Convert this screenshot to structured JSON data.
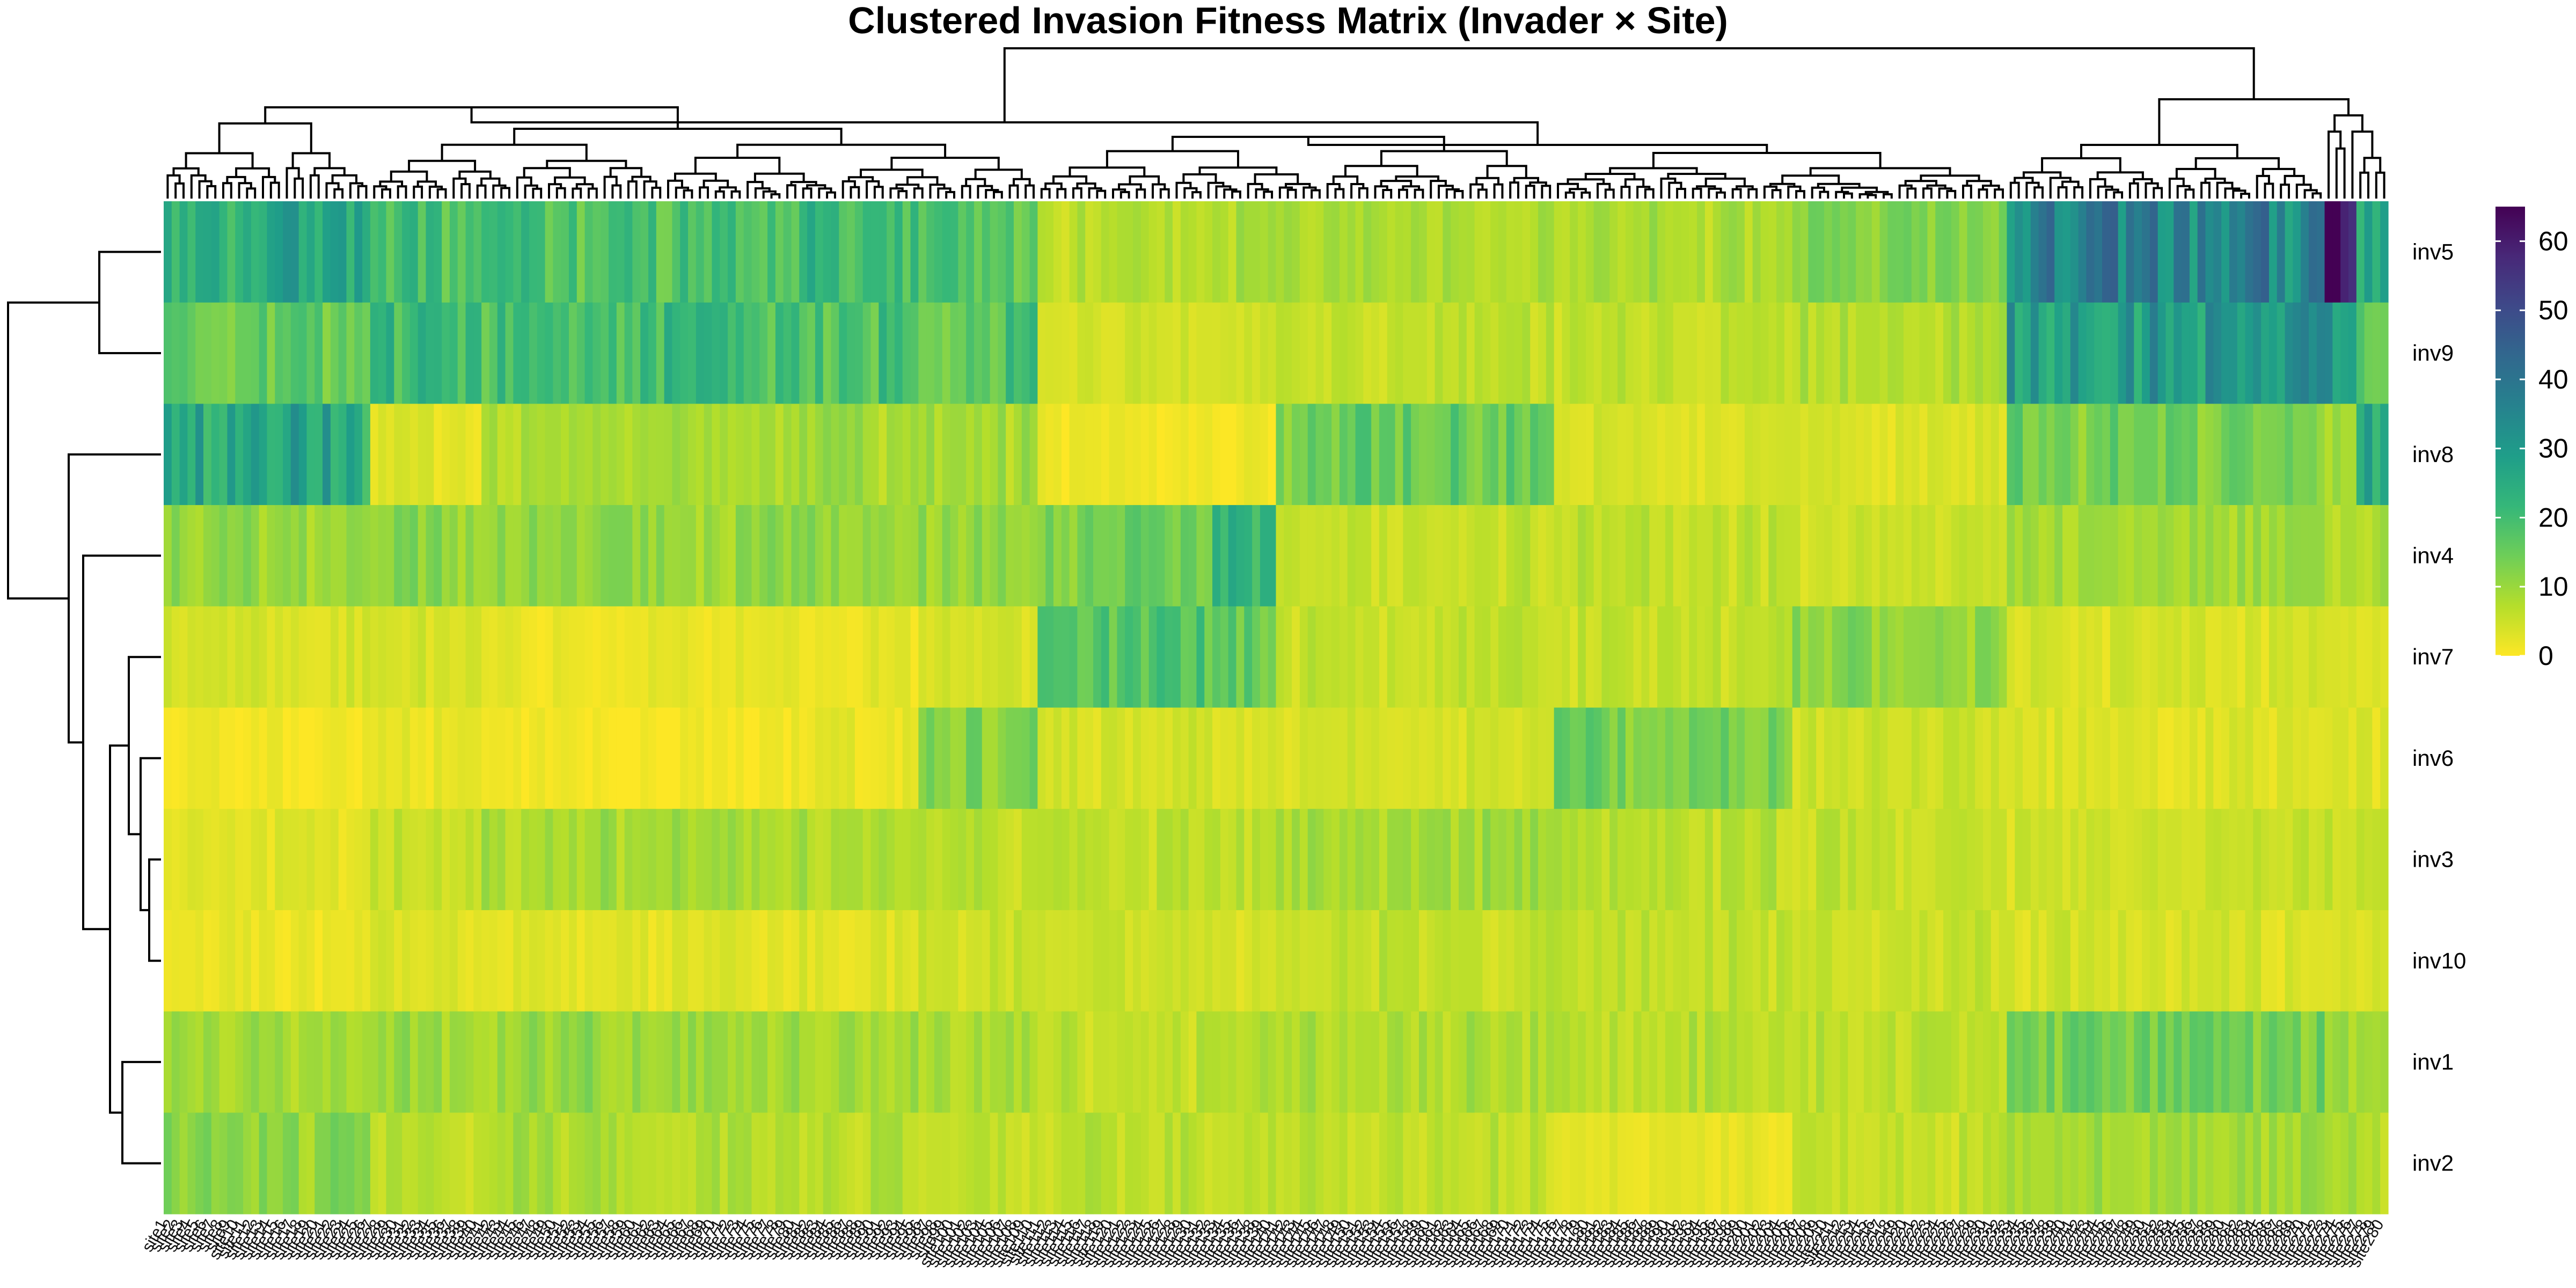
{
  "chart_data": {
    "type": "heatmap",
    "title": "Clustered Invasion Fitness Matrix (Invader × Site)",
    "rows": [
      "inv5",
      "inv9",
      "inv8",
      "inv4",
      "inv7",
      "inv6",
      "inv3",
      "inv10",
      "inv1",
      "inv2"
    ],
    "n_columns": 280,
    "column_tick_label": "site",
    "colorbar": {
      "range": [
        0,
        65
      ],
      "ticks": [
        0,
        10,
        20,
        30,
        40,
        50,
        60
      ],
      "palette": "viridis-reversed",
      "stops": [
        "#fde725",
        "#b5de2b",
        "#6ece58",
        "#35b779",
        "#1f9e89",
        "#26828e",
        "#31688e",
        "#3e4989",
        "#482878",
        "#440154"
      ]
    },
    "column_groups": [
      {
        "start": 0,
        "end": 26,
        "values": [
          25,
          16,
          26,
          10,
          4,
          1,
          3,
          2,
          9,
          11
        ]
      },
      {
        "start": 26,
        "end": 40,
        "values": [
          19,
          22,
          3,
          11,
          4,
          2,
          5,
          3,
          10,
          7
        ]
      },
      {
        "start": 40,
        "end": 80,
        "values": [
          18,
          20,
          8,
          10,
          2,
          1,
          9,
          3,
          10,
          8
        ]
      },
      {
        "start": 80,
        "end": 95,
        "values": [
          21,
          19,
          9,
          10,
          2,
          2,
          8,
          3,
          9,
          7
        ]
      },
      {
        "start": 95,
        "end": 110,
        "values": [
          17,
          18,
          9,
          11,
          4,
          12,
          7,
          5,
          8,
          6
        ]
      },
      {
        "start": 110,
        "end": 132,
        "values": [
          7,
          4,
          1,
          14,
          17,
          4,
          6,
          5,
          6,
          6
        ]
      },
      {
        "start": 132,
        "end": 140,
        "values": [
          8,
          4,
          1,
          22,
          16,
          3,
          6,
          4,
          7,
          6
        ]
      },
      {
        "start": 140,
        "end": 175,
        "values": [
          8,
          6,
          15,
          6,
          6,
          4,
          9,
          6,
          8,
          6
        ]
      },
      {
        "start": 175,
        "end": 205,
        "values": [
          8,
          6,
          4,
          6,
          6,
          14,
          7,
          6,
          7,
          2
        ]
      },
      {
        "start": 205,
        "end": 232,
        "values": [
          12,
          8,
          4,
          5,
          11,
          5,
          6,
          5,
          6,
          6
        ]
      },
      {
        "start": 232,
        "end": 272,
        "values": [
          36,
          31,
          14,
          9,
          4,
          3,
          5,
          4,
          14,
          9
        ]
      },
      {
        "start": 272,
        "end": 276,
        "values": [
          64,
          28,
          11,
          8,
          3,
          3,
          5,
          4,
          10,
          8
        ]
      },
      {
        "start": 276,
        "end": 280,
        "values": [
          30,
          18,
          30,
          9,
          3,
          3,
          5,
          4,
          10,
          8
        ]
      }
    ]
  }
}
